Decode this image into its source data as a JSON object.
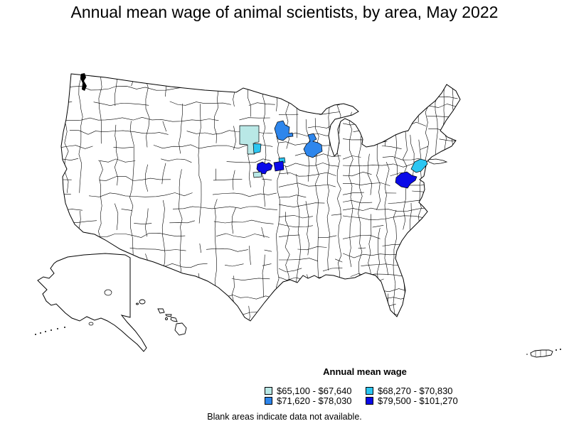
{
  "title": "Annual mean wage of animal scientists, by area, May 2022",
  "legend": {
    "heading": "Annual mean wage",
    "classes": [
      {
        "label": "$65,100 - $67,640",
        "color": "#b9e8e6"
      },
      {
        "label": "$68,270 - $70,830",
        "color": "#2cc6f2"
      },
      {
        "label": "$71,620 - $78,030",
        "color": "#2e86ec"
      },
      {
        "label": "$79,500 - $101,270",
        "color": "#0a0ae8"
      }
    ]
  },
  "footnote": "Blank areas indicate data not available.",
  "map": {
    "background": "#ffffff",
    "boundary_color": "#000000",
    "areas": [
      {
        "id": "area-north-dakota-east",
        "class": 0
      },
      {
        "id": "area-fargo-valley",
        "class": 1
      },
      {
        "id": "area-central-minnesota",
        "class": 2
      },
      {
        "id": "area-northeast-wisconsin",
        "class": 2
      },
      {
        "id": "area-minneapolis-east",
        "class": 1
      },
      {
        "id": "area-south-minnesota-west",
        "class": 3
      },
      {
        "id": "area-south-minnesota-east",
        "class": 3
      },
      {
        "id": "area-southwest-minnesota",
        "class": 0
      },
      {
        "id": "area-central-new-jersey",
        "class": 1
      },
      {
        "id": "area-washington-baltimore",
        "class": 3
      }
    ]
  }
}
